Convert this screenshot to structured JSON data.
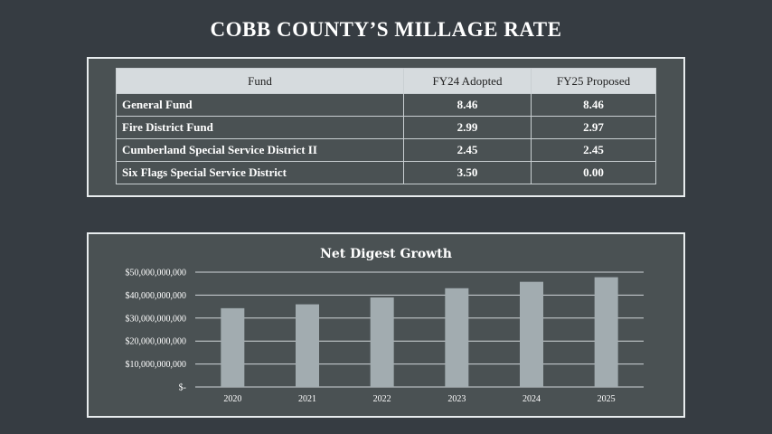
{
  "slide": {
    "title": "COBB COUNTY’S MILLAGE RATE"
  },
  "table": {
    "headers": [
      "Fund",
      "FY24 Adopted",
      "FY25 Proposed"
    ],
    "rows": [
      [
        "General Fund",
        "8.46",
        "8.46"
      ],
      [
        "Fire District Fund",
        "2.99",
        "2.97"
      ],
      [
        "Cumberland Special Service District II",
        "2.45",
        "2.45"
      ],
      [
        "Six Flags Special Service District",
        "3.50",
        "0.00"
      ]
    ]
  },
  "colors": {
    "background": "#363c42",
    "panel": "#4a5153",
    "bar": "#a2acb0",
    "header": "#d6dbde"
  },
  "chart_data": {
    "type": "bar",
    "title": "Net Digest Growth",
    "categories": [
      "2020",
      "2021",
      "2022",
      "2023",
      "2024",
      "2025"
    ],
    "values": [
      34300000000,
      36000000000,
      39000000000,
      43000000000,
      45800000000,
      47800000000
    ],
    "ylim": [
      0,
      50000000000
    ],
    "yticks": [
      0,
      10000000000,
      20000000000,
      30000000000,
      40000000000,
      50000000000
    ],
    "ytick_labels": [
      "$-",
      "$10,000,000,000",
      "$20,000,000,000",
      "$30,000,000,000",
      "$40,000,000,000",
      "$50,000,000,000"
    ],
    "xlabel": "",
    "ylabel": "",
    "grid": true
  }
}
